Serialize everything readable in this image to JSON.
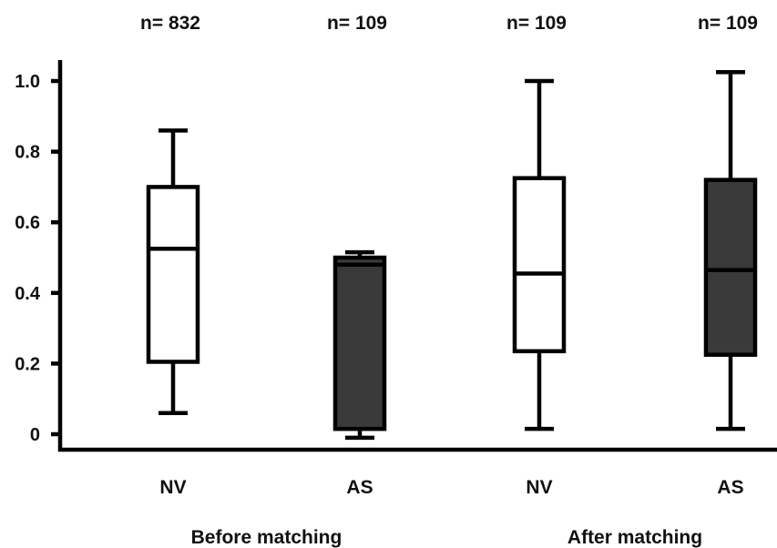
{
  "chart_data": {
    "type": "box",
    "ylim": [
      0,
      1.0
    ],
    "yticks": [
      "0",
      "0.2",
      "0.4",
      "0.6",
      "0.8",
      "1.0"
    ],
    "yticks_values": [
      0,
      0.2,
      0.4,
      0.6,
      0.8,
      1.0
    ],
    "grid": false,
    "boxes": [
      {
        "label": "NV",
        "n_label": "n= 832",
        "min": 0.06,
        "q1": 0.205,
        "median": 0.525,
        "q3": 0.7,
        "max": 0.86,
        "fill": "#ffffff"
      },
      {
        "label": "AS",
        "n_label": "n= 109",
        "min": -0.01,
        "q1": 0.015,
        "median": 0.48,
        "q3": 0.5,
        "max": 0.515,
        "fill": "#3a3a3a"
      },
      {
        "label": "NV",
        "n_label": "n= 109",
        "min": 0.015,
        "q1": 0.235,
        "median": 0.455,
        "q3": 0.725,
        "max": 1.0,
        "fill": "#ffffff"
      },
      {
        "label": "AS",
        "n_label": "n= 109",
        "min": 0.015,
        "q1": 0.225,
        "median": 0.465,
        "q3": 0.72,
        "max": 1.025,
        "fill": "#3a3a3a"
      }
    ],
    "groups": [
      {
        "label": "Before matching",
        "boxes": [
          0,
          1
        ]
      },
      {
        "label": "After matching",
        "boxes": [
          2,
          3
        ]
      }
    ]
  }
}
